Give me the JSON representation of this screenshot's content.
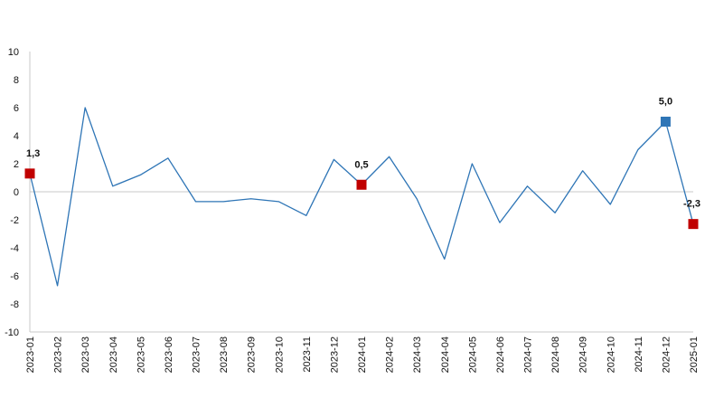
{
  "chart_data": {
    "type": "line",
    "title": "",
    "xlabel": "",
    "ylabel": "",
    "ylim": [
      -10,
      10
    ],
    "y_ticks": [
      10,
      8,
      6,
      4,
      2,
      0,
      -2,
      -4,
      -6,
      -8,
      -10
    ],
    "grid": false,
    "categories": [
      "2023-01",
      "2023-02",
      "2023-03",
      "2023-04",
      "2023-05",
      "2023-06",
      "2023-07",
      "2023-08",
      "2023-09",
      "2023-10",
      "2023-11",
      "2023-12",
      "2024-01",
      "2024-02",
      "2024-03",
      "2024-04",
      "2024-05",
      "2024-06",
      "2024-07",
      "2024-08",
      "2024-09",
      "2024-10",
      "2024-11",
      "2024-12",
      "2025-01"
    ],
    "series": [
      {
        "values": [
          1.3,
          -6.7,
          6.0,
          0.4,
          1.2,
          2.4,
          -0.7,
          -0.7,
          -0.5,
          -0.7,
          -1.7,
          2.3,
          0.5,
          2.5,
          -0.5,
          -4.8,
          2.0,
          -2.2,
          0.4,
          -1.5,
          1.5,
          -0.9,
          3.0,
          5.0,
          -2.3
        ],
        "color": "#2e75b6"
      }
    ],
    "highlighted_points": [
      {
        "index": 0,
        "label": "1,3",
        "color": "#c00000"
      },
      {
        "index": 12,
        "label": "0,5",
        "color": "#c00000"
      },
      {
        "index": 23,
        "label": "5,0",
        "color": "#2e75b6"
      },
      {
        "index": 24,
        "label": "-2,3",
        "color": "#c00000"
      }
    ],
    "colors": {
      "axis": "#c8c8c8",
      "line": "#2e75b6",
      "highlight_red": "#c00000",
      "highlight_blue": "#2e75b6"
    }
  }
}
